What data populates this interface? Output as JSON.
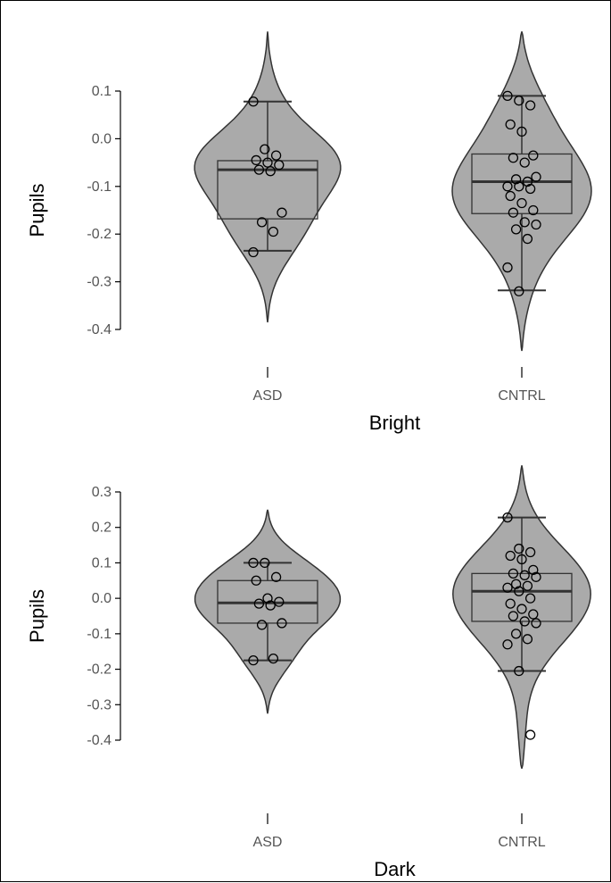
{
  "chart_data": [
    {
      "type": "violin",
      "xlabel": "Bright",
      "ylabel": "Pupils",
      "categories": [
        "ASD",
        "CNTRL"
      ],
      "y_ticks": [
        0.1,
        0.0,
        -0.1,
        -0.2,
        -0.3,
        -0.4
      ],
      "y_tick_labels": [
        "0.1",
        "0.0",
        "-0.1",
        "-0.2",
        "-0.3",
        "-0.4"
      ],
      "ylim": [
        -0.4,
        0.1
      ],
      "series": [
        {
          "category": "ASD",
          "box": {
            "whisker_low": -0.235,
            "q1": -0.168,
            "median": -0.065,
            "q3": -0.046,
            "whisker_high": 0.078
          },
          "points": [
            0.078,
            -0.022,
            -0.035,
            -0.045,
            -0.05,
            -0.055,
            -0.065,
            -0.068,
            -0.155,
            -0.175,
            -0.195,
            -0.238
          ],
          "violin_range": [
            -0.385,
            0.225
          ]
        },
        {
          "category": "CNTRL",
          "box": {
            "whisker_low": -0.318,
            "q1": -0.157,
            "median": -0.09,
            "q3": -0.032,
            "whisker_high": 0.09
          },
          "points": [
            0.09,
            0.08,
            0.07,
            0.03,
            0.015,
            -0.035,
            -0.04,
            -0.05,
            -0.08,
            -0.085,
            -0.09,
            -0.1,
            -0.1,
            -0.105,
            -0.12,
            -0.135,
            -0.15,
            -0.155,
            -0.175,
            -0.18,
            -0.19,
            -0.21,
            -0.27,
            -0.32
          ],
          "violin_range": [
            -0.445,
            0.225
          ]
        }
      ]
    },
    {
      "type": "violin",
      "xlabel": "Dark",
      "ylabel": "Pupils",
      "categories": [
        "ASD",
        "CNTRL"
      ],
      "y_ticks": [
        0.3,
        0.2,
        0.1,
        0.0,
        -0.1,
        -0.2,
        -0.3,
        -0.4
      ],
      "y_tick_labels": [
        "0.3",
        "0.2",
        "0.1",
        "0.0",
        "-0.1",
        "-0.2",
        "-0.3",
        "-0.4"
      ],
      "ylim": [
        -0.4,
        0.3
      ],
      "series": [
        {
          "category": "ASD",
          "box": {
            "whisker_low": -0.175,
            "q1": -0.07,
            "median": -0.013,
            "q3": 0.05,
            "whisker_high": 0.1
          },
          "points": [
            0.1,
            0.1,
            0.06,
            0.05,
            0.0,
            -0.01,
            -0.015,
            -0.02,
            -0.07,
            -0.075,
            -0.17,
            -0.175
          ],
          "violin_range": [
            -0.325,
            0.25
          ]
        },
        {
          "category": "CNTRL",
          "box": {
            "whisker_low": -0.205,
            "q1": -0.065,
            "median": 0.02,
            "q3": 0.07,
            "whisker_high": 0.228
          },
          "points": [
            0.228,
            0.14,
            0.13,
            0.12,
            0.11,
            0.08,
            0.07,
            0.065,
            0.06,
            0.04,
            0.035,
            0.03,
            0.02,
            0.0,
            -0.015,
            -0.03,
            -0.045,
            -0.05,
            -0.065,
            -0.07,
            -0.1,
            -0.115,
            -0.13,
            -0.205,
            -0.385
          ],
          "violin_range": [
            -0.48,
            0.375
          ]
        }
      ]
    }
  ]
}
